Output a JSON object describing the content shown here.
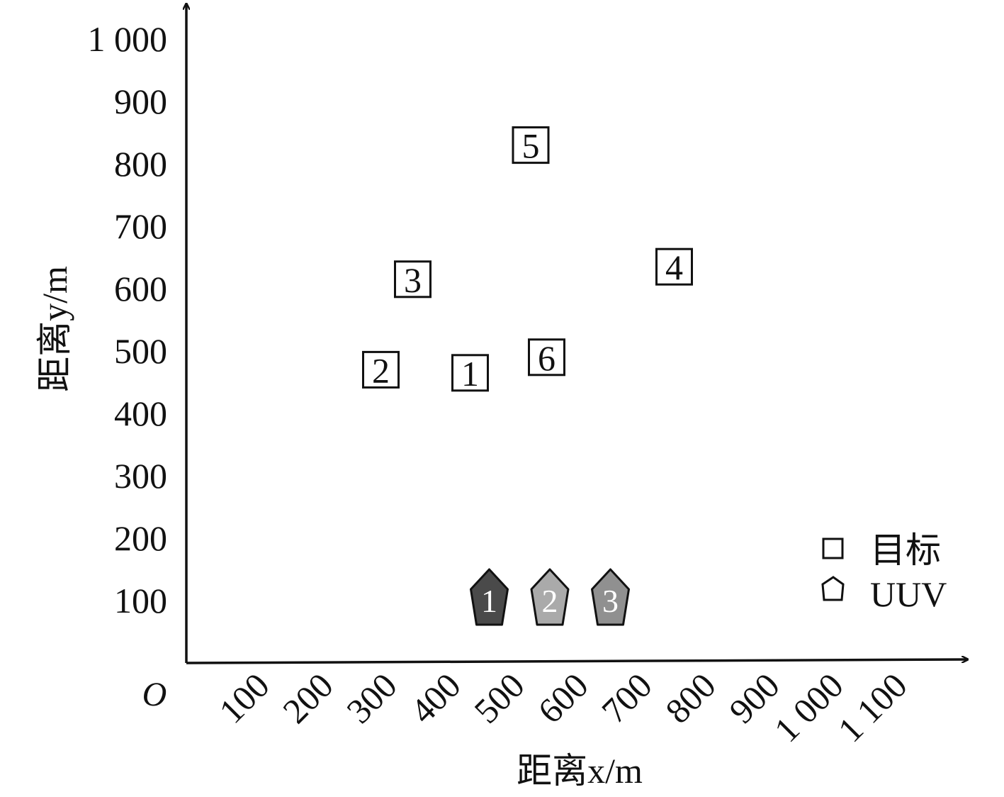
{
  "chart_data": {
    "type": "scatter",
    "origin_label": "O",
    "xlabel": "距离x/m",
    "ylabel": "距离y/m",
    "x_ticks": [
      {
        "value": 100,
        "label": "100"
      },
      {
        "value": 200,
        "label": "200"
      },
      {
        "value": 300,
        "label": "300"
      },
      {
        "value": 400,
        "label": "400"
      },
      {
        "value": 500,
        "label": "500"
      },
      {
        "value": 600,
        "label": "600"
      },
      {
        "value": 700,
        "label": "700"
      },
      {
        "value": 800,
        "label": "800"
      },
      {
        "value": 900,
        "label": "900"
      },
      {
        "value": 1000,
        "label": "1 000"
      },
      {
        "value": 1100,
        "label": "1 100"
      }
    ],
    "y_ticks": [
      {
        "value": 100,
        "label": "100"
      },
      {
        "value": 200,
        "label": "200"
      },
      {
        "value": 300,
        "label": "300"
      },
      {
        "value": 400,
        "label": "400"
      },
      {
        "value": 500,
        "label": "500"
      },
      {
        "value": 600,
        "label": "600"
      },
      {
        "value": 700,
        "label": "700"
      },
      {
        "value": 800,
        "label": "800"
      },
      {
        "value": 900,
        "label": "900"
      },
      {
        "value": 1000,
        "label": "1 000"
      }
    ],
    "xlim": [
      0,
      1200
    ],
    "ylim": [
      0,
      1050
    ],
    "grid": false,
    "legend_position": "bottom-right",
    "series": [
      {
        "name": "目标",
        "marker": "square",
        "points": [
          {
            "label": "1",
            "x": 445,
            "y": 465
          },
          {
            "label": "2",
            "x": 305,
            "y": 470
          },
          {
            "label": "3",
            "x": 355,
            "y": 615
          },
          {
            "label": "4",
            "x": 765,
            "y": 635
          },
          {
            "label": "5",
            "x": 540,
            "y": 830
          },
          {
            "label": "6",
            "x": 565,
            "y": 490
          }
        ]
      },
      {
        "name": "UUV",
        "marker": "pentagon",
        "points": [
          {
            "label": "1",
            "x": 475,
            "y": 100,
            "color": "#4a4a4a"
          },
          {
            "label": "2",
            "x": 570,
            "y": 100,
            "color": "#aaaaaa"
          },
          {
            "label": "3",
            "x": 665,
            "y": 100,
            "color": "#909090"
          }
        ]
      }
    ]
  }
}
